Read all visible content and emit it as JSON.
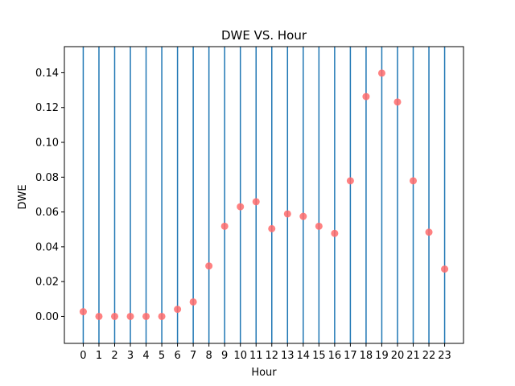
{
  "chart_data": {
    "type": "scatter",
    "title": "DWE VS. Hour",
    "xlabel": "Hour",
    "ylabel": "DWE",
    "x": [
      0,
      1,
      2,
      3,
      4,
      5,
      6,
      7,
      8,
      9,
      10,
      11,
      12,
      13,
      14,
      15,
      16,
      17,
      18,
      19,
      20,
      21,
      22,
      23
    ],
    "y": [
      0.0027,
      0.0,
      0.0,
      0.0,
      0.0,
      0.0,
      0.0041,
      0.0083,
      0.029,
      0.0518,
      0.063,
      0.0659,
      0.0504,
      0.0589,
      0.0575,
      0.0518,
      0.0477,
      0.0779,
      0.1263,
      0.1398,
      0.1232,
      0.0779,
      0.0484,
      0.0272
    ],
    "x_ticks": [
      "0",
      "1",
      "2",
      "3",
      "4",
      "5",
      "6",
      "7",
      "8",
      "9",
      "10",
      "11",
      "12",
      "13",
      "14",
      "15",
      "16",
      "17",
      "18",
      "19",
      "20",
      "21",
      "22",
      "23"
    ],
    "y_ticks": [
      "0.00",
      "0.02",
      "0.04",
      "0.06",
      "0.08",
      "0.10",
      "0.12",
      "0.14"
    ],
    "y_tick_values": [
      0.0,
      0.02,
      0.04,
      0.06,
      0.08,
      0.1,
      0.12,
      0.14
    ],
    "xlim": [
      -1.2,
      24.2
    ],
    "ylim": [
      -0.0155,
      0.155
    ],
    "vertical_lines_at": [
      0,
      1,
      2,
      3,
      4,
      5,
      6,
      7,
      8,
      9,
      10,
      11,
      12,
      13,
      14,
      15,
      16,
      17,
      18,
      19,
      20,
      21,
      22,
      23
    ],
    "grid": false,
    "colors": {
      "points": "#ff6b6b",
      "vlines": "#1f77b4",
      "axes": "#000000"
    }
  }
}
